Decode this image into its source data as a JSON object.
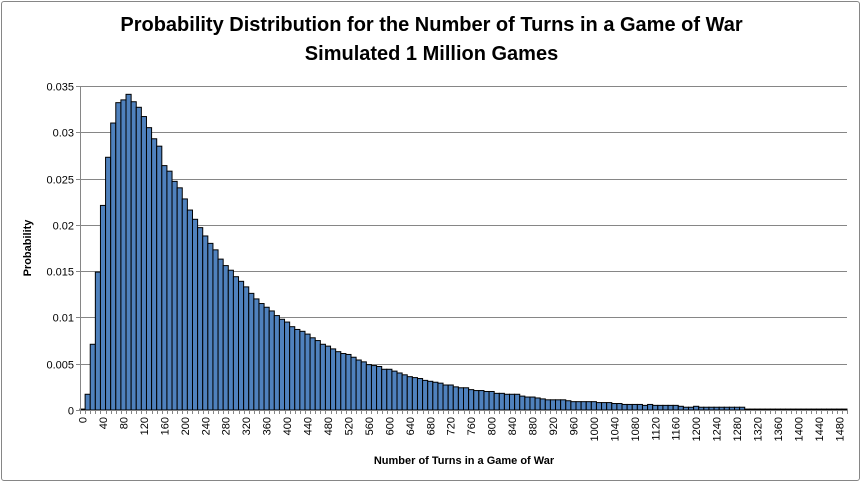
{
  "chart_data": {
    "type": "bar",
    "title": "Probability Distribution for the Number of Turns in a Game of War",
    "subtitle": "Simulated 1 Million Games",
    "xlabel": "Number of Turns in a Game of War",
    "ylabel": "Probability",
    "bin_start": 0,
    "bin_width": 10,
    "xlim": [
      0,
      1500
    ],
    "ylim": [
      0,
      0.035
    ],
    "grid": true,
    "legend": "none",
    "bar_color": "#4F81BD",
    "y_tick_labels": [
      "0",
      "0.005",
      "0.01",
      "0.015",
      "0.02",
      "0.025",
      "0.03",
      "0.035"
    ],
    "y_ticks": [
      0,
      0.005,
      0.01,
      0.015,
      0.02,
      0.025,
      0.03,
      0.035
    ],
    "x_tick_labels": [
      "0",
      "40",
      "80",
      "120",
      "160",
      "200",
      "240",
      "280",
      "320",
      "360",
      "400",
      "440",
      "480",
      "520",
      "560",
      "600",
      "640",
      "680",
      "720",
      "760",
      "800",
      "840",
      "880",
      "920",
      "960",
      "1000",
      "1040",
      "1080",
      "1120",
      "1160",
      "1200",
      "1240",
      "1280",
      "1320",
      "1360",
      "1400",
      "1440",
      "1480"
    ],
    "values": [
      0.0001,
      0.0017,
      0.0071,
      0.0149,
      0.0221,
      0.0273,
      0.031,
      0.0332,
      0.0335,
      0.0341,
      0.0333,
      0.0327,
      0.0317,
      0.0305,
      0.0293,
      0.0285,
      0.0264,
      0.0258,
      0.0247,
      0.024,
      0.0228,
      0.0216,
      0.0206,
      0.0197,
      0.0188,
      0.018,
      0.0173,
      0.0163,
      0.0156,
      0.0151,
      0.0144,
      0.0139,
      0.0133,
      0.0126,
      0.012,
      0.0115,
      0.0111,
      0.0107,
      0.0102,
      0.0098,
      0.0095,
      0.009,
      0.0087,
      0.0085,
      0.0082,
      0.0078,
      0.0075,
      0.0071,
      0.0069,
      0.0066,
      0.0063,
      0.0061,
      0.006,
      0.0057,
      0.0054,
      0.0052,
      0.0049,
      0.0048,
      0.0047,
      0.0044,
      0.0044,
      0.0042,
      0.004,
      0.0038,
      0.0036,
      0.0035,
      0.0034,
      0.0032,
      0.0031,
      0.003,
      0.0029,
      0.0027,
      0.0027,
      0.0025,
      0.0024,
      0.0024,
      0.0022,
      0.0021,
      0.0021,
      0.002,
      0.002,
      0.0018,
      0.0018,
      0.0017,
      0.0017,
      0.0017,
      0.0015,
      0.0014,
      0.0014,
      0.0013,
      0.0012,
      0.0011,
      0.0011,
      0.0011,
      0.0011,
      0.001,
      0.0009,
      0.0009,
      0.0009,
      0.0009,
      0.0009,
      0.0008,
      0.0008,
      0.0008,
      0.0007,
      0.0007,
      0.0006,
      0.0006,
      0.0006,
      0.0006,
      0.0005,
      0.0006,
      0.0005,
      0.0005,
      0.0005,
      0.0005,
      0.0005,
      0.0004,
      0.0003,
      0.0003,
      0.0004,
      0.0003,
      0.0003,
      0.0003,
      0.0003,
      0.0003,
      0.0003,
      0.0003,
      0.0003,
      0.0003,
      0.0001,
      0.0001,
      0.0001,
      0.0001,
      0.0001,
      0.0001,
      0.0001,
      0.0001,
      0.0001,
      0.0001,
      0.0001,
      0.0001,
      0.0001,
      0.0001,
      0.0001,
      0.0001,
      0.0001,
      0.0001,
      0.0001,
      0.0001
    ]
  }
}
